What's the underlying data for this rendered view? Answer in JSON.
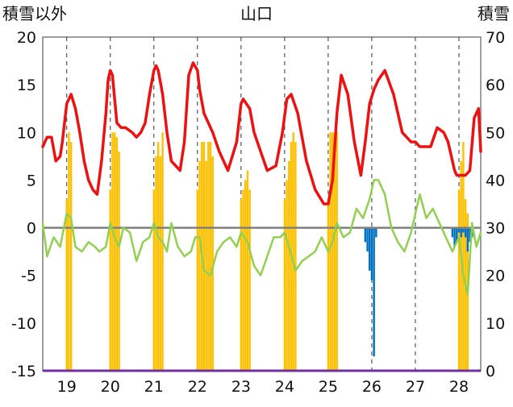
{
  "chart_data": {
    "type": "line",
    "title": "山口",
    "left_axis_label": "積雪以外",
    "right_axis_label": "積雪",
    "x_ticks": [
      "19",
      "20",
      "21",
      "22",
      "23",
      "24",
      "25",
      "26",
      "27",
      "28"
    ],
    "left_ticks": [
      "20",
      "15",
      "10",
      "5",
      "0",
      "-5",
      "-10",
      "-15"
    ],
    "right_ticks": [
      "70",
      "60",
      "50",
      "40",
      "30",
      "20",
      "10",
      "0"
    ],
    "xlim": [
      18.45,
      28.5
    ],
    "ylim_left": [
      -15,
      20
    ],
    "ylim_right": [
      0,
      70
    ],
    "grid": "dashed vertical lines at day boundaries",
    "colors": {
      "red_series": "#ee1111",
      "green_series": "#92d050",
      "orange_bars": "#ffc000",
      "blue_bars": "#0070c0",
      "zero_line": "#7f7f7f",
      "bottom_line": "#7030a0"
    },
    "series": [
      {
        "color": "red",
        "x": [
          18.45,
          18.55,
          18.65,
          18.75,
          18.85,
          18.9,
          19.0,
          19.1,
          19.2,
          19.3,
          19.4,
          19.5,
          19.6,
          19.7,
          19.8,
          19.9,
          19.95,
          20.0,
          20.05,
          20.15,
          20.25,
          20.35,
          20.5,
          20.6,
          20.7,
          20.8,
          20.9,
          21.0,
          21.05,
          21.1,
          21.2,
          21.3,
          21.4,
          21.5,
          21.6,
          21.7,
          21.8,
          21.9,
          22.0,
          22.05,
          22.15,
          22.25,
          22.35,
          22.5,
          22.7,
          22.9,
          23.0,
          23.05,
          23.2,
          23.3,
          23.45,
          23.6,
          23.8,
          23.95,
          24.05,
          24.15,
          24.3,
          24.5,
          24.7,
          24.9,
          25.0,
          25.1,
          25.2,
          25.3,
          25.45,
          25.6,
          25.75,
          25.85,
          25.95,
          26.05,
          26.15,
          26.3,
          26.5,
          26.7,
          26.9,
          27.0,
          27.1,
          27.2,
          27.35,
          27.5,
          27.65,
          27.75,
          27.85,
          27.9,
          27.95,
          28.0,
          28.05,
          28.15,
          28.25,
          28.35,
          28.45,
          28.5
        ],
        "y": [
          8.5,
          9.5,
          9.5,
          7.0,
          7.5,
          9.0,
          13.0,
          14.0,
          12.5,
          10.0,
          7.0,
          5.0,
          4.0,
          3.5,
          7.0,
          12.0,
          15.5,
          16.5,
          16.0,
          11.0,
          10.5,
          10.5,
          10.0,
          9.5,
          10.0,
          11.0,
          14.0,
          16.5,
          17.0,
          16.5,
          14.0,
          10.0,
          7.0,
          6.5,
          6.0,
          9.0,
          16.0,
          17.3,
          16.5,
          14.5,
          12.0,
          11.0,
          10.0,
          8.0,
          6.0,
          9.0,
          13.0,
          13.5,
          12.5,
          10.0,
          8.0,
          6.0,
          6.5,
          10.0,
          13.5,
          14.0,
          12.0,
          7.0,
          4.0,
          2.5,
          2.5,
          5.0,
          12.0,
          16.0,
          14.0,
          9.0,
          5.5,
          9.0,
          13.0,
          14.5,
          15.5,
          16.5,
          14.0,
          10.0,
          9.0,
          9.0,
          8.5,
          8.5,
          8.5,
          10.5,
          10.0,
          9.0,
          7.0,
          6.0,
          5.5,
          5.5,
          5.5,
          5.5,
          6.0,
          11.5,
          12.5,
          8.0
        ]
      },
      {
        "color": "green",
        "x": [
          18.45,
          18.55,
          18.7,
          18.85,
          19.0,
          19.1,
          19.2,
          19.35,
          19.5,
          19.65,
          19.75,
          19.9,
          20.0,
          20.1,
          20.2,
          20.3,
          20.45,
          20.6,
          20.75,
          20.9,
          21.0,
          21.1,
          21.2,
          21.3,
          21.4,
          21.55,
          21.7,
          21.85,
          21.95,
          22.05,
          22.15,
          22.3,
          22.45,
          22.6,
          22.75,
          22.9,
          23.0,
          23.15,
          23.3,
          23.45,
          23.6,
          23.75,
          23.9,
          24.0,
          24.1,
          24.25,
          24.4,
          24.55,
          24.7,
          24.85,
          25.0,
          25.1,
          25.2,
          25.35,
          25.5,
          25.65,
          25.8,
          25.95,
          26.05,
          26.15,
          26.3,
          26.45,
          26.6,
          26.75,
          26.9,
          27.0,
          27.1,
          27.25,
          27.4,
          27.55,
          27.7,
          27.85,
          28.0,
          28.1,
          28.2,
          28.3,
          28.4,
          28.5
        ],
        "y": [
          0.5,
          -3.0,
          -1.0,
          -2.0,
          1.5,
          1.0,
          -2.0,
          -2.5,
          -1.5,
          -2.0,
          -2.5,
          -2.0,
          0.5,
          -1.0,
          -2.0,
          0.0,
          -0.5,
          -3.5,
          -1.5,
          -1.0,
          0.5,
          -1.0,
          -1.5,
          -2.5,
          0.5,
          -2.0,
          -3.0,
          -2.5,
          -1.0,
          -1.0,
          -4.5,
          -5.0,
          -2.5,
          -1.5,
          -1.0,
          -2.0,
          -0.5,
          -1.5,
          -4.0,
          -5.0,
          -3.0,
          -1.0,
          -1.0,
          -0.5,
          -2.0,
          -4.5,
          -3.5,
          -3.0,
          -2.5,
          -1.0,
          -2.5,
          -1.5,
          0.5,
          -1.0,
          -0.5,
          2.0,
          1.0,
          3.0,
          5.0,
          5.0,
          3.5,
          0.0,
          -1.5,
          -2.5,
          -0.5,
          1.5,
          3.5,
          1.0,
          2.0,
          0.5,
          -1.0,
          -2.5,
          -1.0,
          -5.0,
          -7.0,
          0.5,
          -2.0,
          -0.5
        ]
      }
    ],
    "snow_bars_right_axis": {
      "color": "orange",
      "x": [
        19.0,
        19.05,
        19.1,
        20.0,
        20.05,
        20.1,
        20.15,
        20.2,
        21.0,
        21.05,
        21.1,
        21.15,
        21.2,
        22.0,
        22.05,
        22.1,
        22.15,
        22.2,
        22.25,
        22.3,
        22.35,
        23.0,
        23.05,
        23.1,
        23.15,
        23.2,
        24.0,
        24.05,
        24.1,
        24.15,
        24.2,
        24.25,
        25.0,
        25.05,
        25.1,
        25.15,
        25.2,
        28.0,
        28.05,
        28.1,
        28.15,
        28.2
      ],
      "y": [
        36,
        50,
        48,
        38,
        50,
        50,
        49,
        46,
        38,
        45,
        48,
        45,
        50,
        38,
        44,
        48,
        48,
        44,
        48,
        48,
        45,
        36,
        38,
        40,
        42,
        38,
        36,
        40,
        44,
        48,
        50,
        48,
        36,
        50,
        50,
        50,
        50,
        38,
        44,
        48,
        36,
        33
      ]
    },
    "negative_bars_left_axis": {
      "color": "blue",
      "x": [
        25.85,
        25.9,
        25.95,
        26.0,
        26.05,
        26.1,
        27.85,
        27.9,
        27.95,
        28.0,
        28.05,
        28.1,
        28.15,
        28.2,
        28.25,
        28.3
      ],
      "y": [
        -1.5,
        -2.5,
        -4.5,
        -5.5,
        -13.5,
        -1.0,
        -1.0,
        -2.0,
        -1.5,
        -0.5,
        -1.0,
        -0.5,
        -1.0,
        -2.5,
        -1.5,
        -1.0
      ]
    }
  }
}
